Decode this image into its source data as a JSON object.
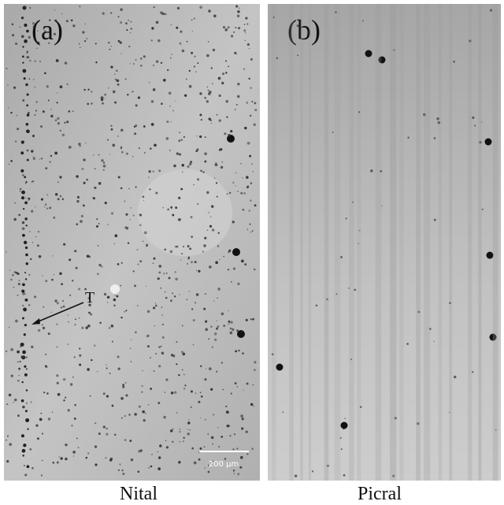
{
  "panels": [
    {
      "label": "(a)",
      "caption": "Nital",
      "annotation": "T",
      "scale_bar": "200 μm"
    },
    {
      "label": "(b)",
      "caption": "Picral"
    }
  ]
}
